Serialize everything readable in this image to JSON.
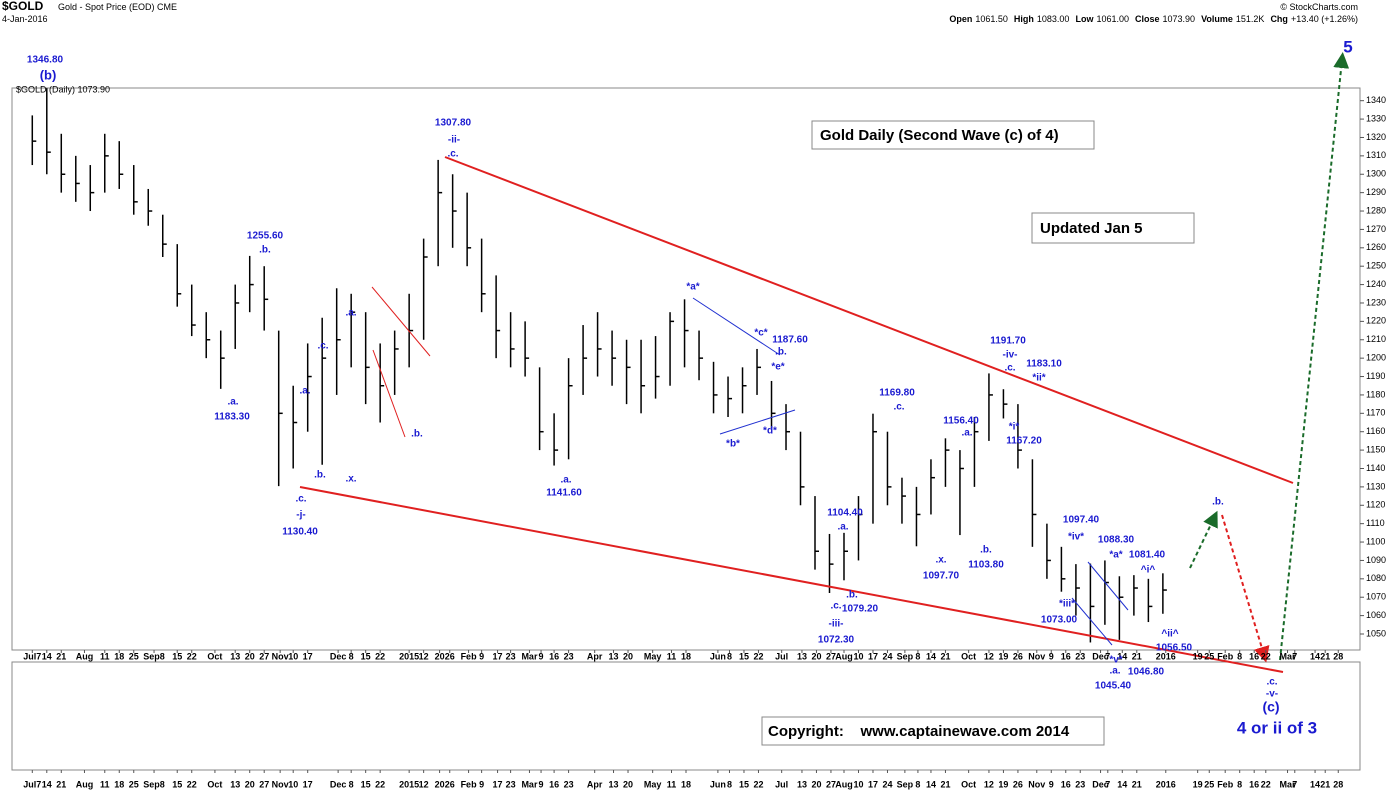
{
  "header": {
    "symbol": "$GOLD",
    "name": "Gold - Spot Price (EOD) CME",
    "date": "4-Jan-2016",
    "source": "© StockCharts.com",
    "quote": [
      {
        "label": "Open",
        "value": "1061.50"
      },
      {
        "label": "High",
        "value": "1083.00"
      },
      {
        "label": "Low",
        "value": "1061.00"
      },
      {
        "label": "Close",
        "value": "1073.90"
      },
      {
        "label": "Volume",
        "value": "151.2K"
      },
      {
        "label": "Chg",
        "value": "+13.40 (+1.26%)"
      }
    ],
    "legend": "$GOLD (Daily) 1073.90"
  },
  "boxes": [
    "Gold Daily (Second Wave (c) of 4)",
    "Updated Jan 5",
    "Copyright:    www.captainewave.com 2014"
  ],
  "annotations": [
    "1346.80",
    "(b)",
    "1307.80",
    "-ii-",
    ".c.",
    "1255.60",
    ".b.",
    ".a.",
    "1183.30",
    ".c.",
    ".a.",
    ".a.",
    ".b.",
    ".x.",
    ".c.",
    "-j-",
    "1130.40",
    ".b.",
    "*a*",
    "*c*",
    "1187.60",
    ".b.",
    "*e*",
    "*b*",
    "*d*",
    ".a.",
    "1141.60",
    "1169.80",
    ".c.",
    "1104.40",
    ".a.",
    ".b.",
    ".c.",
    "1079.20",
    "-iii-",
    "1072.30",
    ".x.",
    "1097.70",
    ".b.",
    "1103.80",
    "1156.40",
    ".a.",
    "1191.70",
    "-iv-",
    ".c.",
    "1183.10",
    "*ii*",
    "*i*",
    "1167.20",
    "1097.40",
    "*iv*",
    "*iii*",
    "1073.00",
    "1088.30",
    "*a*",
    "1081.40",
    "^i^",
    "^ii^",
    "1056.50",
    "*v*",
    ".a.",
    "1046.80",
    "1045.40",
    ".b.",
    ".c.",
    "-v-",
    "(c)",
    "4 or ii of 3",
    "5"
  ],
  "chart_data": {
    "type": "ohlc",
    "color": "#000000",
    "x": [
      0,
      1,
      2,
      3,
      4,
      5,
      6,
      7,
      8,
      9,
      10,
      11,
      12,
      13,
      14,
      15,
      16,
      17,
      18,
      19,
      20,
      21,
      22,
      23,
      24,
      25,
      26,
      27,
      28,
      29,
      30,
      31,
      32,
      33,
      34,
      35,
      36,
      37,
      38,
      39,
      40,
      41,
      42,
      43,
      44,
      45,
      46,
      47,
      48,
      49,
      50,
      51,
      52,
      53,
      54,
      55,
      56,
      57,
      58,
      59,
      60,
      61,
      62,
      63,
      64,
      65,
      66,
      67,
      68,
      69,
      70,
      71,
      72,
      73,
      74,
      75,
      76,
      77,
      78
    ],
    "high": [
      1332,
      1346.8,
      1322,
      1310,
      1305,
      1322,
      1318,
      1305,
      1292,
      1278,
      1262,
      1240,
      1225,
      1215,
      1240,
      1255.6,
      1250,
      1215,
      1185,
      1208,
      1222,
      1238,
      1235,
      1225,
      1208,
      1215,
      1235,
      1265,
      1307.8,
      1300,
      1290,
      1265,
      1245,
      1225,
      1220,
      1195,
      1170,
      1200,
      1218,
      1225,
      1215,
      1210,
      1210,
      1212,
      1225,
      1232,
      1215,
      1198,
      1190,
      1195,
      1205,
      1187.6,
      1175,
      1160,
      1125,
      1104.4,
      1105,
      1125,
      1169.8,
      1160,
      1135,
      1130,
      1145,
      1156.4,
      1150,
      1168,
      1191.7,
      1183.1,
      1175,
      1145,
      1110,
      1097.4,
      1088,
      1088.3,
      1090,
      1081.4,
      1082,
      1080,
      1083
    ],
    "low": [
      1305,
      1300,
      1290,
      1285,
      1280,
      1290,
      1292,
      1278,
      1272,
      1255,
      1228,
      1212,
      1200,
      1183.3,
      1205,
      1225,
      1215,
      1130.4,
      1140,
      1160,
      1142,
      1180,
      1195,
      1175,
      1165,
      1180,
      1195,
      1210,
      1250,
      1260,
      1250,
      1225,
      1200,
      1195,
      1190,
      1150,
      1141.6,
      1145,
      1180,
      1190,
      1185,
      1175,
      1170,
      1178,
      1185,
      1195,
      1188,
      1170,
      1168,
      1170,
      1180,
      1162,
      1150,
      1120,
      1085,
      1072.3,
      1079.2,
      1090,
      1110,
      1120,
      1110,
      1097.7,
      1115,
      1130,
      1103.8,
      1130,
      1155,
      1167.2,
      1140,
      1097.4,
      1080,
      1073,
      1060,
      1045.4,
      1055,
      1046.8,
      1060,
      1056.5,
      1061
    ],
    "close": [
      1318,
      1312,
      1300,
      1295,
      1290,
      1310,
      1300,
      1285,
      1280,
      1262,
      1235,
      1218,
      1210,
      1200,
      1230,
      1240,
      1232,
      1170,
      1165,
      1190,
      1200,
      1210,
      1225,
      1195,
      1185,
      1205,
      1215,
      1255,
      1290,
      1280,
      1260,
      1235,
      1215,
      1205,
      1200,
      1160,
      1150,
      1185,
      1200,
      1205,
      1200,
      1195,
      1185,
      1190,
      1220,
      1215,
      1200,
      1180,
      1178,
      1185,
      1195,
      1170,
      1160,
      1130,
      1095,
      1088,
      1095,
      1115,
      1160,
      1130,
      1125,
      1115,
      1135,
      1150,
      1140,
      1160,
      1180,
      1175,
      1150,
      1115,
      1090,
      1080,
      1075,
      1065,
      1078,
      1070,
      1075,
      1065,
      1073.9
    ],
    "xlim": [
      -1.4,
      91.6
    ],
    "xticks": [
      {
        "value": 0,
        "label": "Jul7"
      },
      {
        "value": 1,
        "label": "14"
      },
      {
        "value": 2,
        "label": "21"
      },
      {
        "value": 3.6,
        "label": "Aug"
      },
      {
        "value": 5,
        "label": "11"
      },
      {
        "value": 6,
        "label": "18"
      },
      {
        "value": 7,
        "label": "25"
      },
      {
        "value": 8.4,
        "label": "Sep8"
      },
      {
        "value": 10,
        "label": "15"
      },
      {
        "value": 11,
        "label": "22"
      },
      {
        "value": 12.6,
        "label": "Oct"
      },
      {
        "value": 14,
        "label": "13"
      },
      {
        "value": 15,
        "label": "20"
      },
      {
        "value": 16,
        "label": "27"
      },
      {
        "value": 17.1,
        "label": "Nov"
      },
      {
        "value": 18,
        "label": "10"
      },
      {
        "value": 19,
        "label": "17"
      },
      {
        "value": 21.1,
        "label": "Dec"
      },
      {
        "value": 22,
        "label": "8"
      },
      {
        "value": 23,
        "label": "15"
      },
      {
        "value": 24,
        "label": "22"
      },
      {
        "value": 26,
        "label": "2015"
      },
      {
        "value": 27,
        "label": "12"
      },
      {
        "value": 28.1,
        "label": "20"
      },
      {
        "value": 28.8,
        "label": "26"
      },
      {
        "value": 30.1,
        "label": "Feb"
      },
      {
        "value": 31,
        "label": "9"
      },
      {
        "value": 32.1,
        "label": "17"
      },
      {
        "value": 33,
        "label": "23"
      },
      {
        "value": 34.3,
        "label": "Mar"
      },
      {
        "value": 35.1,
        "label": "9"
      },
      {
        "value": 36,
        "label": "16"
      },
      {
        "value": 37,
        "label": "23"
      },
      {
        "value": 38.8,
        "label": "Apr"
      },
      {
        "value": 40.1,
        "label": "13"
      },
      {
        "value": 41.1,
        "label": "20"
      },
      {
        "value": 42.8,
        "label": "May"
      },
      {
        "value": 44.1,
        "label": "11"
      },
      {
        "value": 45.1,
        "label": "18"
      },
      {
        "value": 47.3,
        "label": "Jun"
      },
      {
        "value": 48.1,
        "label": "8"
      },
      {
        "value": 49.1,
        "label": "15"
      },
      {
        "value": 50.1,
        "label": "22"
      },
      {
        "value": 51.7,
        "label": "Jul"
      },
      {
        "value": 53.1,
        "label": "13"
      },
      {
        "value": 54.1,
        "label": "20"
      },
      {
        "value": 55.1,
        "label": "27"
      },
      {
        "value": 56,
        "label": "Aug"
      },
      {
        "value": 57,
        "label": "10"
      },
      {
        "value": 58,
        "label": "17"
      },
      {
        "value": 59,
        "label": "24"
      },
      {
        "value": 60.2,
        "label": "Sep"
      },
      {
        "value": 61.1,
        "label": "8"
      },
      {
        "value": 62,
        "label": "14"
      },
      {
        "value": 63,
        "label": "21"
      },
      {
        "value": 64.6,
        "label": "Oct"
      },
      {
        "value": 66,
        "label": "12"
      },
      {
        "value": 67,
        "label": "19"
      },
      {
        "value": 68,
        "label": "26"
      },
      {
        "value": 69.3,
        "label": "Nov"
      },
      {
        "value": 70.3,
        "label": "9"
      },
      {
        "value": 71.3,
        "label": "16"
      },
      {
        "value": 72.3,
        "label": "23"
      },
      {
        "value": 73.7,
        "label": "Dec"
      },
      {
        "value": 74.2,
        "label": "7"
      },
      {
        "value": 75.2,
        "label": "14"
      },
      {
        "value": 76.2,
        "label": "21"
      },
      {
        "value": 78.2,
        "label": "2016"
      },
      {
        "value": 80.4,
        "label": "19"
      },
      {
        "value": 81.2,
        "label": "25"
      },
      {
        "value": 82.3,
        "label": "Feb"
      },
      {
        "value": 83.3,
        "label": "8"
      },
      {
        "value": 84.3,
        "label": "16"
      },
      {
        "value": 85.1,
        "label": "22"
      },
      {
        "value": 86.6,
        "label": "Mar"
      },
      {
        "value": 87.1,
        "label": "7"
      },
      {
        "value": 88.5,
        "label": "14"
      },
      {
        "value": 89.2,
        "label": "21"
      },
      {
        "value": 90.1,
        "label": "28"
      }
    ],
    "ylim": [
      1041.3,
      1346.9
    ],
    "yticks": [
      1050,
      1060,
      1070,
      1080,
      1090,
      1100,
      1110,
      1120,
      1130,
      1140,
      1150,
      1160,
      1170,
      1180,
      1190,
      1200,
      1210,
      1220,
      1230,
      1240,
      1250,
      1260,
      1270,
      1280,
      1290,
      1300,
      1310,
      1320,
      1330,
      1340
    ],
    "grid": false
  }
}
